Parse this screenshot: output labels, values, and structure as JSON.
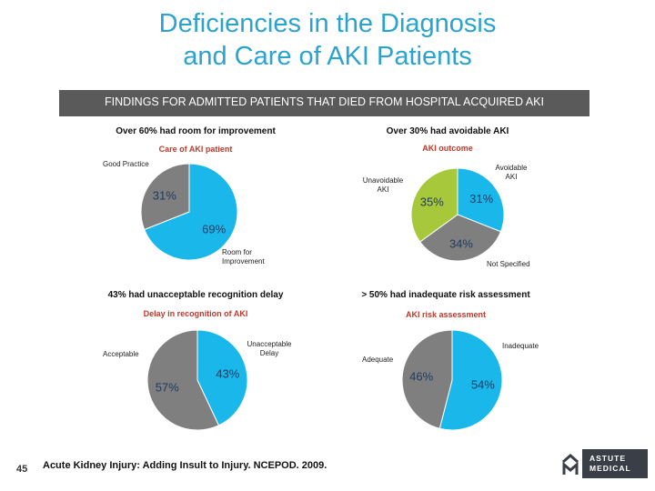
{
  "title": "Deficiencies in the Diagnosis and Care of AKI Patients",
  "banner": "FINDINGS FOR ADMITTED PATIENTS THAT DIED FROM HOSPITAL ACQUIRED AKI",
  "page_number": "45",
  "footer": "Acute Kidney Injury: Adding Insult to Injury. NCEPOD. 2009.",
  "logo": {
    "line1": "ASTUTE",
    "line2": "MEDICAL"
  },
  "chart_data": [
    {
      "type": "pie",
      "title": "Over 60% had room for improvement",
      "subtitle": "Care of AKI patient",
      "categories": [
        "Room for Improvement",
        "Good Practice"
      ],
      "values": [
        69,
        31
      ],
      "value_labels": [
        "69%",
        "31%"
      ],
      "colors": [
        "#1ab7ea",
        "#7f7f7f"
      ]
    },
    {
      "type": "pie",
      "title": "Over 30% had avoidable AKI",
      "subtitle": "AKI outcome",
      "categories": [
        "Avoidable AKI",
        "Not Specified",
        "Unavoidable AKI"
      ],
      "values": [
        31,
        34,
        35
      ],
      "value_labels": [
        "31%",
        "34%",
        "35%"
      ],
      "colors": [
        "#1ab7ea",
        "#7f7f7f",
        "#a8c83c"
      ]
    },
    {
      "type": "pie",
      "title": "43% had unacceptable recognition delay",
      "subtitle": "Delay in recognition of AKI",
      "categories": [
        "Unacceptable Delay",
        "Acceptable"
      ],
      "values": [
        43,
        57
      ],
      "value_labels": [
        "43%",
        "57%"
      ],
      "colors": [
        "#1ab7ea",
        "#7f7f7f"
      ]
    },
    {
      "type": "pie",
      "title": "> 50% had inadequate risk assessment",
      "subtitle": "AKI risk assessment",
      "categories": [
        "Inadequate",
        "Adequate"
      ],
      "values": [
        54,
        46
      ],
      "value_labels": [
        "54%",
        "46%"
      ],
      "colors": [
        "#1ab7ea",
        "#7f7f7f"
      ]
    }
  ]
}
